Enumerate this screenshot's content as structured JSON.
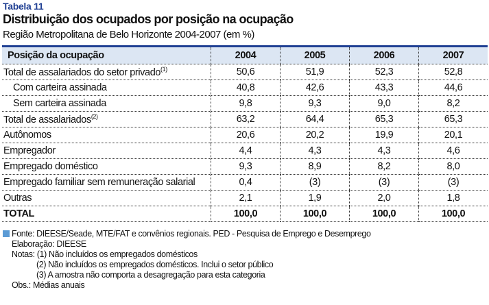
{
  "header": {
    "label": "Tabela 11",
    "title": "Distribuição dos ocupados por posição na ocupação",
    "subtitle": "Região Metropolitana de Belo Horizonte 2004-2007 (em %)"
  },
  "table": {
    "columns": [
      "Posição da ocupação",
      "2004",
      "2005",
      "2006",
      "2007"
    ],
    "rows": [
      {
        "label": "Total de assalariados do setor privado",
        "sup": "(1)",
        "values": [
          "50,6",
          "51,9",
          "52,3",
          "52,8"
        ]
      },
      {
        "label": "Com carteira assinada",
        "sup": "",
        "values": [
          "40,8",
          "42,6",
          "43,3",
          "44,6"
        ]
      },
      {
        "label": "Sem carteira assinada",
        "sup": "",
        "values": [
          "9,8",
          "9,3",
          "9,0",
          "8,2"
        ]
      },
      {
        "label": "Total de assalariados",
        "sup": "(2)",
        "values": [
          "63,2",
          "64,4",
          "65,3",
          "65,3"
        ]
      },
      {
        "label": "Autônomos",
        "sup": "",
        "values": [
          "20,6",
          "20,2",
          "19,9",
          "20,1"
        ]
      },
      {
        "label": "Empregador",
        "sup": "",
        "values": [
          "4,4",
          "4,3",
          "4,3",
          "4,6"
        ]
      },
      {
        "label": "Empregado doméstico",
        "sup": "",
        "values": [
          "9,3",
          "8,9",
          "8,2",
          "8,0"
        ]
      },
      {
        "label": "Empregado familiar sem remuneração salarial",
        "sup": "",
        "values": [
          "0,4",
          "(3)",
          "(3)",
          "(3)"
        ]
      },
      {
        "label": "Outras",
        "sup": "",
        "values": [
          "2,1",
          "1,9",
          "2,0",
          "1,8"
        ]
      },
      {
        "label": "TOTAL",
        "sup": "",
        "values": [
          "100,0",
          "100,0",
          "100,0",
          "100,0"
        ]
      }
    ]
  },
  "notes": {
    "fonte": "Fonte: DIEESE/Seade, MTE/FAT e convênios regionais. PED - Pesquisa de Emprego e Desemprego",
    "elaboracao": "Elaboração: DIEESE",
    "nota1": "Notas: (1) Não incluídos os empregados domésticos",
    "nota2": "(2) Não incluídos os empregados domésticos. Inclui o setor público",
    "nota3": "(3) A amostra não comporta a desagregação para esta categoria",
    "obs": "Obs.: Médias anuais"
  },
  "colors": {
    "accent": "#1f3f93",
    "header_bg": "#dce6f3",
    "marker": "#5b9bd5"
  }
}
